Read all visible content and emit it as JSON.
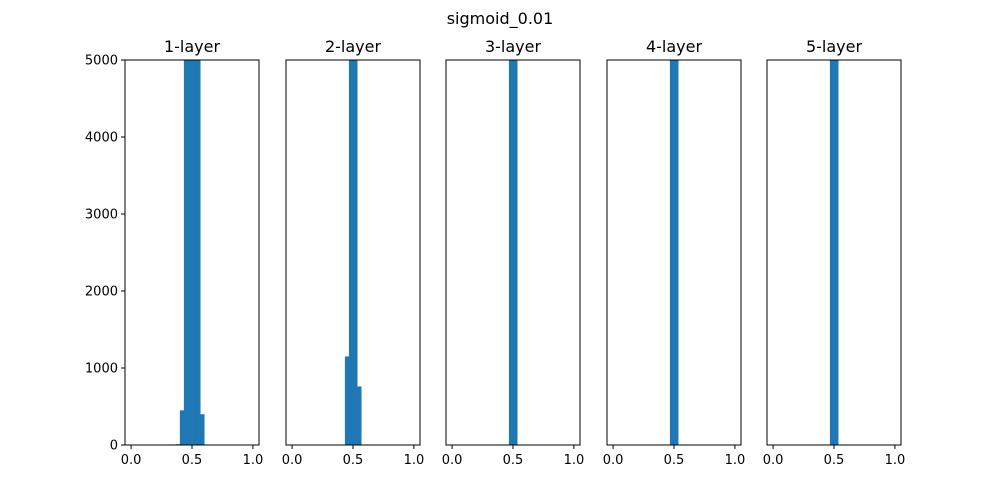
{
  "chart_data": {
    "type": "bar",
    "suptitle": "sigmoid_0.01",
    "bar_color": "#1f77b4",
    "xlim": [
      -0.05,
      1.05
    ],
    "ylim": [
      0,
      5000
    ],
    "xticks": [
      {
        "value": 0.0,
        "label": "0.0"
      },
      {
        "value": 0.5,
        "label": "0.5"
      },
      {
        "value": 1.0,
        "label": "1.0"
      }
    ],
    "yticks": [
      {
        "value": 0,
        "label": "0"
      },
      {
        "value": 1000,
        "label": "1000"
      },
      {
        "value": 2000,
        "label": "2000"
      },
      {
        "value": 3000,
        "label": "3000"
      },
      {
        "value": 4000,
        "label": "4000"
      },
      {
        "value": 5000,
        "label": "5000"
      }
    ],
    "bin_width": 0.0333,
    "grid": false,
    "legend": "none",
    "panels": [
      {
        "title": "1-layer",
        "bins": [
          {
            "x": 0.383,
            "count": 10
          },
          {
            "x": 0.417,
            "count": 450
          },
          {
            "x": 0.45,
            "count": 5000
          },
          {
            "x": 0.483,
            "count": 5000
          },
          {
            "x": 0.517,
            "count": 5000
          },
          {
            "x": 0.55,
            "count": 5000
          },
          {
            "x": 0.583,
            "count": 400
          }
        ]
      },
      {
        "title": "2-layer",
        "bins": [
          {
            "x": 0.45,
            "count": 1150
          },
          {
            "x": 0.483,
            "count": 5000
          },
          {
            "x": 0.517,
            "count": 5000
          },
          {
            "x": 0.55,
            "count": 760
          }
        ]
      },
      {
        "title": "3-layer",
        "bins": [
          {
            "x": 0.483,
            "count": 5000
          },
          {
            "x": 0.517,
            "count": 5000
          }
        ]
      },
      {
        "title": "4-layer",
        "bins": [
          {
            "x": 0.483,
            "count": 5000
          },
          {
            "x": 0.517,
            "count": 5000
          }
        ]
      },
      {
        "title": "5-layer",
        "bins": [
          {
            "x": 0.483,
            "count": 5000
          },
          {
            "x": 0.517,
            "count": 5000
          }
        ]
      }
    ]
  }
}
